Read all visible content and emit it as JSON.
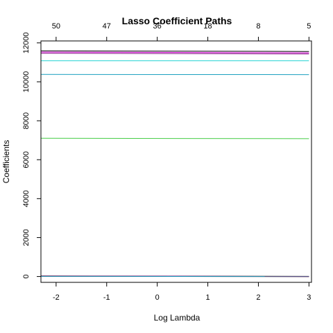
{
  "chart_data": {
    "type": "line",
    "title": "Lasso Coefficient Paths",
    "xlabel": "Log Lambda",
    "ylabel": "Coefficients",
    "xlim": [
      -2.3,
      3.05
    ],
    "ylim": [
      -300,
      12100
    ],
    "x_ticks": [
      "-2",
      "-1",
      "0",
      "1",
      "2",
      "3"
    ],
    "y_ticks": [
      "0",
      "2000",
      "4000",
      "6000",
      "8000",
      "10000",
      "12000"
    ],
    "top_axis": {
      "positions": [
        -2,
        -1,
        0,
        1,
        2,
        3
      ],
      "labels": [
        "50",
        "47",
        "36",
        "18",
        "8",
        "5"
      ]
    },
    "x": [
      -2.3,
      3.0
    ],
    "series": [
      {
        "color": "#000000",
        "values": [
          11590,
          11560
        ]
      },
      {
        "color": "#cc00cc",
        "values": [
          11530,
          11490
        ]
      },
      {
        "color": "#800080",
        "values": [
          11470,
          11430
        ]
      },
      {
        "color": "#22d3d3",
        "values": [
          11080,
          11080
        ]
      },
      {
        "color": "#1a9fbf",
        "values": [
          10380,
          10370
        ]
      },
      {
        "color": "#44cc44",
        "values": [
          7100,
          7080
        ]
      },
      {
        "color": "#000000",
        "values": [
          30,
          5
        ]
      },
      {
        "color": "#cc00cc",
        "values": [
          20,
          0
        ]
      },
      {
        "color": "#800000",
        "values": [
          10,
          -5
        ]
      },
      {
        "color": "#1a9fbf",
        "values": [
          5,
          0
        ]
      }
    ],
    "grid": false,
    "legend": "none"
  }
}
